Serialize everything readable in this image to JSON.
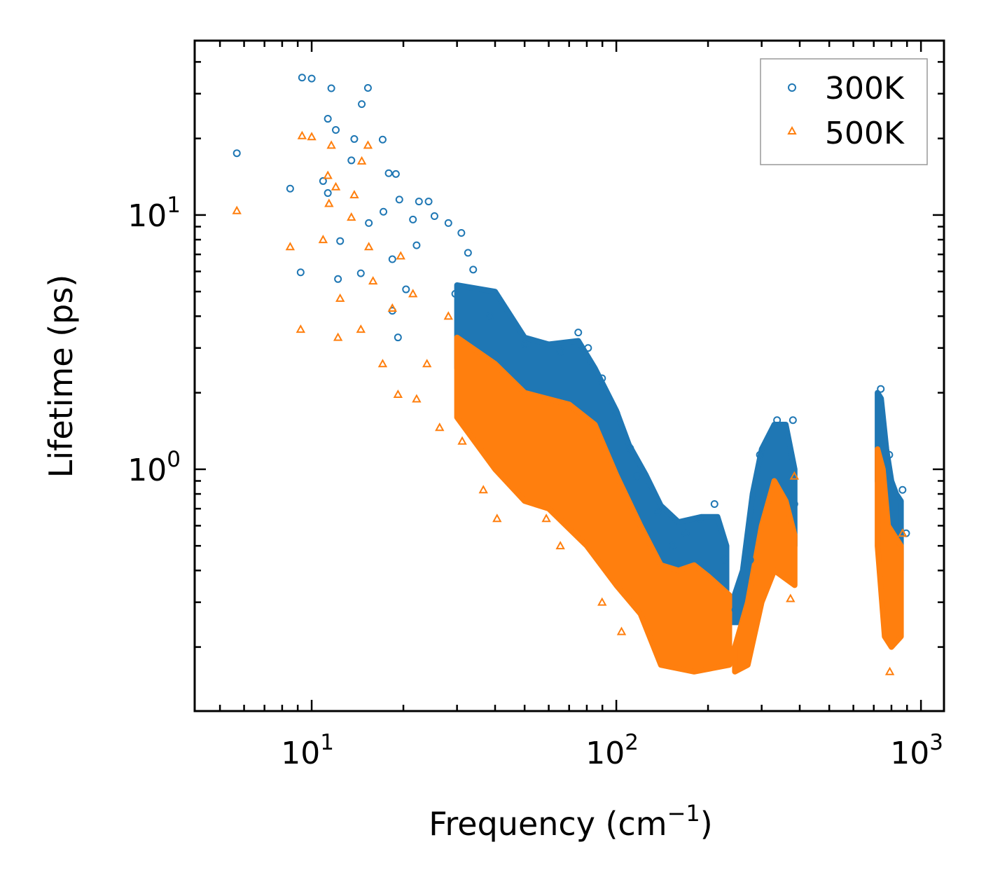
{
  "chart_data": {
    "type": "scatter",
    "title": "",
    "xlabel": "Frequency (cm",
    "xlabel_sup": "−1",
    "xlabel_end": ")",
    "ylabel": "Lifetime (ps)",
    "xscale": "log",
    "yscale": "log",
    "xlim": [
      4.13,
      1190
    ],
    "ylim": [
      0.112,
      48.5
    ],
    "x_ticks": [
      {
        "value": 10,
        "base": "10",
        "exp": "1"
      },
      {
        "value": 100,
        "base": "10",
        "exp": "2"
      },
      {
        "value": 1000,
        "base": "10",
        "exp": "3"
      }
    ],
    "y_ticks": [
      {
        "value": 1,
        "base": "10",
        "exp": "0"
      },
      {
        "value": 10,
        "base": "10",
        "exp": "1"
      }
    ],
    "grid": false,
    "legend_position": "top-right",
    "series": [
      {
        "name": "300K",
        "color": "#1f77b4",
        "marker": "circle",
        "points": [
          [
            5.68,
            17.5
          ],
          [
            9.3,
            34.7
          ],
          [
            10,
            34.4
          ],
          [
            11.6,
            31.5
          ],
          [
            11.3,
            23.9
          ],
          [
            12.0,
            21.6
          ],
          [
            8.5,
            12.7
          ],
          [
            9.2,
            5.95
          ],
          [
            12.4,
            7.9
          ],
          [
            12.2,
            5.6
          ],
          [
            14.6,
            27.3
          ],
          [
            15.3,
            31.6
          ],
          [
            17.1,
            19.8
          ],
          [
            13.8,
            19.9
          ],
          [
            13.5,
            16.4
          ],
          [
            10.9,
            13.6
          ],
          [
            11.3,
            12.2
          ],
          [
            14.5,
            5.9
          ],
          [
            15.4,
            9.3
          ],
          [
            17.9,
            14.6
          ],
          [
            18.9,
            14.5
          ],
          [
            17.2,
            10.3
          ],
          [
            19.4,
            11.5
          ],
          [
            22.5,
            11.3
          ],
          [
            24.2,
            11.3
          ],
          [
            25.3,
            9.9
          ],
          [
            21.5,
            9.6
          ],
          [
            22.1,
            7.6
          ],
          [
            28.1,
            9.3
          ],
          [
            31.0,
            8.5
          ],
          [
            32.6,
            7.1
          ],
          [
            33.9,
            6.1
          ],
          [
            18.4,
            6.7
          ],
          [
            20.4,
            5.1
          ],
          [
            19.2,
            3.3
          ],
          [
            18.4,
            4.2
          ],
          [
            29.6,
            4.9
          ],
          [
            38.5,
            4.0
          ],
          [
            50.2,
            3.1
          ],
          [
            65.5,
            2.9
          ],
          [
            80.8,
            3.0
          ],
          [
            75,
            3.45
          ],
          [
            89.8,
            2.28
          ],
          [
            100,
            1.66
          ],
          [
            111,
            1.21
          ],
          [
            117,
            0.94
          ],
          [
            137,
            0.68
          ],
          [
            153,
            0.5
          ],
          [
            169,
            0.56
          ],
          [
            188,
            0.64
          ],
          [
            210,
            0.73
          ],
          [
            226,
            0.44
          ],
          [
            246,
            0.28
          ],
          [
            275,
            0.44
          ],
          [
            296,
            1.14
          ],
          [
            337,
            1.56
          ],
          [
            380,
            1.56
          ],
          [
            384,
            0.73
          ],
          [
            738,
            2.07
          ],
          [
            787,
            1.14
          ],
          [
            870,
            0.83
          ],
          [
            894,
            0.56
          ]
        ],
        "envelope": [
          {
            "upper": [
              [
                30,
                5.3
              ],
              [
                40,
                5.0
              ],
              [
                50,
                3.3
              ],
              [
                60,
                3.1
              ],
              [
                75,
                3.2
              ],
              [
                85,
                2.5
              ],
              [
                100,
                1.7
              ],
              [
                110,
                1.25
              ],
              [
                125,
                0.95
              ],
              [
                140,
                0.72
              ],
              [
                160,
                0.62
              ],
              [
                190,
                0.65
              ],
              [
                215,
                0.65
              ],
              [
                230,
                0.5
              ]
            ],
            "lower": [
              [
                30,
                2.5
              ],
              [
                40,
                2.2
              ],
              [
                60,
                1.9
              ],
              [
                80,
                1.5
              ],
              [
                100,
                0.9
              ],
              [
                130,
                0.5
              ],
              [
                150,
                0.35
              ],
              [
                200,
                0.33
              ],
              [
                230,
                0.3
              ]
            ]
          },
          {
            "upper": [
              [
                240,
                0.3
              ],
              [
                260,
                0.4
              ],
              [
                280,
                0.8
              ],
              [
                300,
                1.2
              ],
              [
                330,
                1.5
              ],
              [
                360,
                1.5
              ],
              [
                385,
                1.0
              ]
            ],
            "lower": [
              [
                240,
                0.25
              ],
              [
                260,
                0.25
              ],
              [
                280,
                0.4
              ],
              [
                300,
                0.55
              ],
              [
                330,
                0.5
              ],
              [
                360,
                0.45
              ],
              [
                385,
                0.5
              ]
            ]
          },
          {
            "upper": [
              [
                720,
                2.0
              ],
              [
                740,
                1.9
              ],
              [
                770,
                1.2
              ],
              [
                800,
                0.9
              ],
              [
                830,
                0.8
              ],
              [
                860,
                0.75
              ]
            ],
            "lower": [
              [
                720,
                0.9
              ],
              [
                760,
                0.6
              ],
              [
                800,
                0.45
              ],
              [
                860,
                0.4
              ]
            ]
          }
        ]
      },
      {
        "name": "500K",
        "color": "#ff7f0e",
        "marker": "triangle",
        "points": [
          [
            5.68,
            10.4
          ],
          [
            9.3,
            20.5
          ],
          [
            10,
            20.3
          ],
          [
            11.6,
            18.8
          ],
          [
            11.3,
            14.3
          ],
          [
            12,
            12.9
          ],
          [
            8.5,
            7.5
          ],
          [
            9.2,
            3.55
          ],
          [
            10.9,
            8.0
          ],
          [
            11.4,
            11.1
          ],
          [
            12.4,
            4.7
          ],
          [
            12.2,
            3.3
          ],
          [
            14.6,
            16.3
          ],
          [
            15.3,
            18.8
          ],
          [
            13.5,
            9.8
          ],
          [
            13.8,
            12.0
          ],
          [
            14.5,
            3.55
          ],
          [
            15.4,
            7.5
          ],
          [
            17.1,
            2.6
          ],
          [
            19.2,
            1.97
          ],
          [
            18.4,
            4.3
          ],
          [
            15.9,
            5.5
          ],
          [
            19.6,
            6.9
          ],
          [
            21.5,
            4.9
          ],
          [
            22.1,
            1.89
          ],
          [
            23.9,
            2.6
          ],
          [
            26.3,
            1.46
          ],
          [
            28.1,
            4.0
          ],
          [
            31.2,
            1.29
          ],
          [
            36.6,
            0.83
          ],
          [
            40.6,
            0.64
          ],
          [
            58.9,
            0.64
          ],
          [
            65.5,
            0.5
          ],
          [
            89.8,
            0.3
          ],
          [
            104,
            0.23
          ],
          [
            384,
            0.94
          ],
          [
            373,
            0.31
          ],
          [
            790,
            0.16
          ],
          [
            870,
            0.56
          ]
        ],
        "envelope": [
          {
            "upper": [
              [
                30,
                3.3
              ],
              [
                40,
                2.6
              ],
              [
                50,
                2.0
              ],
              [
                70,
                1.8
              ],
              [
                85,
                1.5
              ],
              [
                100,
                0.95
              ],
              [
                120,
                0.6
              ],
              [
                140,
                0.42
              ],
              [
                160,
                0.4
              ],
              [
                180,
                0.42
              ],
              [
                200,
                0.38
              ],
              [
                235,
                0.32
              ]
            ],
            "lower": [
              [
                30,
                1.6
              ],
              [
                40,
                1.0
              ],
              [
                50,
                0.75
              ],
              [
                60,
                0.7
              ],
              [
                80,
                0.5
              ],
              [
                100,
                0.35
              ],
              [
                120,
                0.27
              ],
              [
                140,
                0.17
              ],
              [
                180,
                0.16
              ],
              [
                235,
                0.17
              ]
            ]
          },
          {
            "upper": [
              [
                245,
                0.2
              ],
              [
                270,
                0.3
              ],
              [
                300,
                0.6
              ],
              [
                330,
                0.9
              ],
              [
                360,
                0.75
              ],
              [
                385,
                0.55
              ]
            ],
            "lower": [
              [
                245,
                0.16
              ],
              [
                270,
                0.17
              ],
              [
                300,
                0.3
              ],
              [
                330,
                0.4
              ],
              [
                385,
                0.35
              ]
            ]
          },
          {
            "upper": [
              [
                720,
                1.2
              ],
              [
                750,
                1.0
              ],
              [
                780,
                0.6
              ],
              [
                860,
                0.5
              ]
            ],
            "lower": [
              [
                720,
                0.5
              ],
              [
                760,
                0.22
              ],
              [
                800,
                0.2
              ],
              [
                860,
                0.22
              ]
            ]
          }
        ]
      }
    ]
  }
}
